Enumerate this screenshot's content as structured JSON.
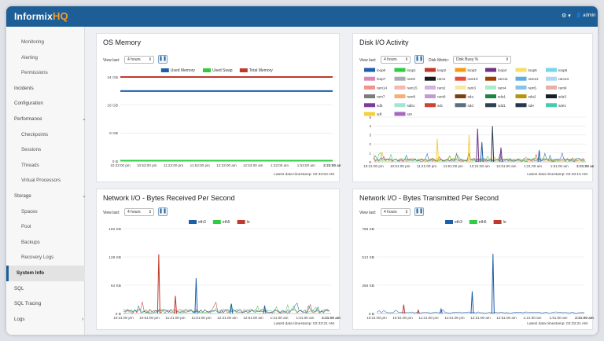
{
  "app": {
    "logo_text": "Informix",
    "logo_hq": "HQ",
    "gear_glyph": "⚙ ▾",
    "user_label": "👤 admin"
  },
  "sidebar": {
    "items": [
      {
        "label": "Monitoring",
        "level": "sub"
      },
      {
        "label": "Alerting",
        "level": "sub"
      },
      {
        "label": "Permissions",
        "level": "sub"
      },
      {
        "label": "Incidents",
        "level": "top"
      },
      {
        "label": "Configuration",
        "level": "top"
      },
      {
        "label": "Performance",
        "level": "top",
        "chevron": "⌄"
      },
      {
        "label": "Checkpoints",
        "level": "sub"
      },
      {
        "label": "Sessions",
        "level": "sub"
      },
      {
        "label": "Threads",
        "level": "sub"
      },
      {
        "label": "Virtual Processors",
        "level": "sub"
      },
      {
        "label": "Storage",
        "level": "top",
        "chevron": "⌄"
      },
      {
        "label": "Spaces",
        "level": "sub"
      },
      {
        "label": "Pool",
        "level": "sub"
      },
      {
        "label": "Backups",
        "level": "sub"
      },
      {
        "label": "Recovery Logs",
        "level": "sub"
      },
      {
        "label": "System Info",
        "level": "top",
        "active": true
      },
      {
        "label": "SQL",
        "level": "top"
      },
      {
        "label": "SQL Tracing",
        "level": "top"
      },
      {
        "label": "Logs",
        "level": "top",
        "chevron": "›"
      }
    ]
  },
  "panels": {
    "os_memory": {
      "title": "OS Memory",
      "view_label": "View last:",
      "range": "4 hours",
      "timestamp": "Latest data timestamp: 02:33:53 AM"
    },
    "disk_io": {
      "title": "Disk I/O Activity",
      "view_label": "View last:",
      "range": "4 hours",
      "metric_label": "Disk Metric:",
      "metric": "Disk Busy %",
      "timestamp": "Latest data timestamp: 02:33:15 AM"
    },
    "net_rx": {
      "title": "Network I/O - Bytes Received Per Second",
      "view_label": "View last:",
      "range": "4 hours",
      "timestamp": "Latest data timestamp: 02:33:31 AM"
    },
    "net_tx": {
      "title": "Network I/O - Bytes Transmitted Per Second",
      "view_label": "View last:",
      "range": "4 hours",
      "timestamp": "Latest data timestamp: 02:33:31 AM"
    }
  },
  "chart_data": [
    {
      "id": "os_memory",
      "type": "line",
      "series": [
        {
          "name": "Used Memory",
          "color": "#1f5ea8",
          "values": [
            20,
            20
          ]
        },
        {
          "name": "Used Swap",
          "color": "#2ecc40",
          "values": [
            0.1,
            0.1
          ]
        },
        {
          "name": "Total Memory",
          "color": "#c0392b",
          "values": [
            24,
            24
          ]
        }
      ],
      "ylim": [
        0,
        24
      ],
      "yticks": [
        "24 GB",
        "16 GB",
        "8 GB",
        "0 B"
      ],
      "xticks": [
        "10:23:00 pm",
        "10:53:00 pm",
        "11:23:00 pm",
        "11:53:00 pm",
        "12:23:00 am",
        "12:53:00 am",
        "1:23:00 am",
        "1:53:00 am",
        "2:23:00 am"
      ]
    },
    {
      "id": "disk_io",
      "type": "line",
      "legend": [
        {
          "name": "loop0",
          "color": "#1f5ea8"
        },
        {
          "name": "loop1",
          "color": "#2ecc40"
        },
        {
          "name": "loop2",
          "color": "#c0392b"
        },
        {
          "name": "loop3",
          "color": "#f39c12"
        },
        {
          "name": "loop4",
          "color": "#6c3483"
        },
        {
          "name": "loop5",
          "color": "#f7dc6f"
        },
        {
          "name": "loop6",
          "color": "#76d7ea"
        },
        {
          "name": "loop7",
          "color": "#d98ab4"
        },
        {
          "name": "ram0",
          "color": "#a6acaf"
        },
        {
          "name": "ram1",
          "color": "#1b1b1b"
        },
        {
          "name": "ram10",
          "color": "#e74c3c"
        },
        {
          "name": "ram11",
          "color": "#a04000"
        },
        {
          "name": "ram12",
          "color": "#5dade2"
        },
        {
          "name": "ram13",
          "color": "#aed6f1"
        },
        {
          "name": "ram14",
          "color": "#f1948a"
        },
        {
          "name": "ram15",
          "color": "#f5b7b1"
        },
        {
          "name": "ram2",
          "color": "#d2b4de"
        },
        {
          "name": "ram3",
          "color": "#f9e79f"
        },
        {
          "name": "ram4",
          "color": "#abebc6"
        },
        {
          "name": "ram5",
          "color": "#85c1e9"
        },
        {
          "name": "ram6",
          "color": "#e6b0aa"
        },
        {
          "name": "ram7",
          "color": "#7b7d7d"
        },
        {
          "name": "ram8",
          "color": "#f0b27a"
        },
        {
          "name": "ram9",
          "color": "#c39bd3"
        },
        {
          "name": "sda",
          "color": "#784212"
        },
        {
          "name": "sda1",
          "color": "#1d8348"
        },
        {
          "name": "sda2",
          "color": "#b7950b"
        },
        {
          "name": "sda3",
          "color": "#17202a"
        },
        {
          "name": "sdb",
          "color": "#7d3c98"
        },
        {
          "name": "sdb1",
          "color": "#a3e4d7"
        },
        {
          "name": "sdc",
          "color": "#cb4335"
        },
        {
          "name": "sdd",
          "color": "#5d6d7e"
        },
        {
          "name": "sdd1",
          "color": "#2e4053"
        },
        {
          "name": "sde",
          "color": "#283747"
        },
        {
          "name": "sde1",
          "color": "#48c9b0"
        },
        {
          "name": "sdf",
          "color": "#f4d03f"
        },
        {
          "name": "sr0",
          "color": "#a569bd"
        }
      ],
      "spikes": [
        {
          "color": "#f4d03f",
          "x": 0.3,
          "value": 2.6
        },
        {
          "color": "#f4d03f",
          "x": 0.45,
          "value": 3.0
        },
        {
          "color": "#6c3483",
          "x": 0.49,
          "value": 3.7
        },
        {
          "color": "#1f5ea8",
          "x": 0.51,
          "value": 2.2
        },
        {
          "color": "#2e4053",
          "x": 0.56,
          "value": 4.0
        },
        {
          "color": "#6c3483",
          "x": 0.6,
          "value": 1.6
        },
        {
          "color": "#1f5ea8",
          "x": 0.78,
          "value": 1.3
        }
      ],
      "ylim": [
        0,
        5
      ],
      "yticks": [
        "5",
        "4",
        "3",
        "2",
        "1",
        "0"
      ],
      "xticks": [
        "10:21:00 pm",
        "10:51:00 pm",
        "11:21:00 pm",
        "11:51:00 pm",
        "12:21:00 am",
        "12:51:00 am",
        "1:21:00 am",
        "1:51:00 am",
        "2:21:00 am"
      ]
    },
    {
      "id": "net_rx",
      "type": "line",
      "series": [
        {
          "name": "eth3",
          "color": "#1f5ea8"
        },
        {
          "name": "eth5",
          "color": "#2ecc40"
        },
        {
          "name": "lo",
          "color": "#c0392b"
        }
      ],
      "spikes": [
        {
          "color": "#c0392b",
          "x": 0.17,
          "value": 134
        },
        {
          "color": "#c0392b",
          "x": 0.25,
          "value": 40
        },
        {
          "color": "#1f5ea8",
          "x": 0.35,
          "value": 80
        },
        {
          "color": "#1f5ea8",
          "x": 0.52,
          "value": 22
        },
        {
          "color": "#1f5ea8",
          "x": 0.68,
          "value": 18
        }
      ],
      "ylim": [
        0,
        192
      ],
      "yticks": [
        "192 KB",
        "128 KB",
        "64 KB",
        "0 B"
      ],
      "xticks": [
        "10:21:00 pm",
        "10:51:00 pm",
        "11:21:00 pm",
        "11:51:00 pm",
        "12:21:00 am",
        "12:51:00 am",
        "1:21:00 am",
        "1:51:00 am",
        "2:21:00 am"
      ]
    },
    {
      "id": "net_tx",
      "type": "line",
      "series": [
        {
          "name": "eth3",
          "color": "#1f5ea8"
        },
        {
          "name": "eth5",
          "color": "#2ecc40"
        },
        {
          "name": "lo",
          "color": "#c0392b"
        }
      ],
      "spikes": [
        {
          "color": "#c0392b",
          "x": 0.13,
          "value": 80
        },
        {
          "color": "#c0392b",
          "x": 0.2,
          "value": 30
        },
        {
          "color": "#1f5ea8",
          "x": 0.31,
          "value": 40
        },
        {
          "color": "#1f5ea8",
          "x": 0.46,
          "value": 200
        },
        {
          "color": "#1f5ea8",
          "x": 0.56,
          "value": 540
        }
      ],
      "ylim": [
        0,
        768
      ],
      "yticks": [
        "768 KB",
        "512 KB",
        "256 KB",
        "0 B"
      ],
      "xticks": [
        "10:21:00 pm",
        "10:51:00 pm",
        "11:21:00 pm",
        "11:51:00 pm",
        "12:21:00 am",
        "12:51:00 am",
        "1:21:00 am",
        "1:51:00 am",
        "2:21:00 am"
      ]
    }
  ]
}
